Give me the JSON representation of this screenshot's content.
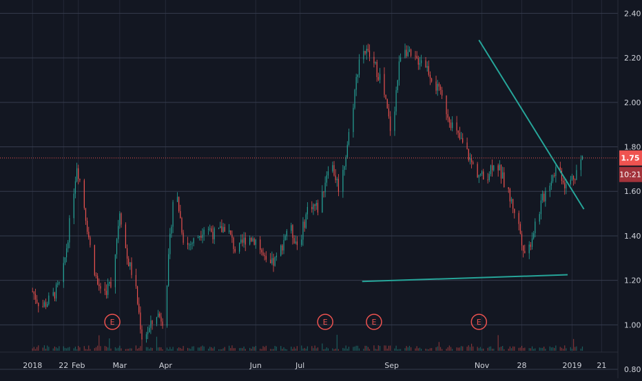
{
  "colors": {
    "background": "#131722",
    "grid": "#363c4e",
    "axis_text": "#d1d4dc",
    "up": "#26a69a",
    "down": "#ef5350",
    "trendline": "#26a69a",
    "price_line": "#ef5350",
    "earnings": "#ef5350"
  },
  "chart_data": {
    "type": "candlestick",
    "title": "",
    "xlabel": "",
    "ylabel": "",
    "ylim": [
      0.76,
      2.46
    ],
    "grid": true,
    "y_ticks": [
      "0.80",
      "1.00",
      "1.20",
      "1.40",
      "1.60",
      "1.80",
      "2.00",
      "2.20",
      "2.40"
    ],
    "y_tick_values": [
      0.8,
      1.0,
      1.2,
      1.4,
      1.6,
      1.8,
      2.0,
      2.2,
      2.4
    ],
    "x_ticks": [
      "2018",
      "22",
      "Feb",
      "Mar",
      "Apr",
      "Jun",
      "Jul",
      "Sep",
      "Nov",
      "28",
      "2019",
      "21"
    ],
    "x_tick_dates": [
      "2018-01-01",
      "2018-01-22",
      "2018-02-01",
      "2018-03-01",
      "2018-04-01",
      "2018-06-01",
      "2018-07-01",
      "2018-09-01",
      "2018-11-01",
      "2018-11-28",
      "2019-01-01",
      "2019-01-21"
    ],
    "price_marker": {
      "label": "1.75",
      "value": 1.75
    },
    "time_marker": {
      "label": "10:21"
    },
    "earnings_markers": [
      {
        "label": "E",
        "date": "2018-02-24"
      },
      {
        "label": "E",
        "date": "2018-07-18"
      },
      {
        "label": "E",
        "date": "2018-08-20"
      },
      {
        "label": "E",
        "date": "2018-10-30"
      }
    ],
    "trendlines": [
      {
        "start": {
          "date": "2018-10-30",
          "value": 2.28
        },
        "end": {
          "date": "2019-01-09",
          "value": 1.52
        }
      },
      {
        "start": {
          "date": "2018-08-12",
          "value": 1.195
        },
        "end": {
          "date": "2018-12-29",
          "value": 1.225
        }
      }
    ],
    "series": [
      {
        "type": "close",
        "x": [
          "2018-01-01",
          "2018-01-07",
          "2018-01-14",
          "2018-01-21",
          "2018-01-26",
          "2018-01-31",
          "2018-02-04",
          "2018-02-09",
          "2018-02-14",
          "2018-02-19",
          "2018-02-24",
          "2018-03-01",
          "2018-03-06",
          "2018-03-11",
          "2018-03-16",
          "2018-03-21",
          "2018-03-26",
          "2018-03-31",
          "2018-04-07",
          "2018-04-14",
          "2018-04-21",
          "2018-04-28",
          "2018-05-05",
          "2018-05-12",
          "2018-05-19",
          "2018-05-26",
          "2018-06-02",
          "2018-06-09",
          "2018-06-16",
          "2018-06-23",
          "2018-06-30",
          "2018-07-07",
          "2018-07-14",
          "2018-07-21",
          "2018-07-28",
          "2018-08-04",
          "2018-08-11",
          "2018-08-18",
          "2018-08-25",
          "2018-09-01",
          "2018-09-04",
          "2018-09-08",
          "2018-09-15",
          "2018-09-22",
          "2018-09-29",
          "2018-10-06",
          "2018-10-13",
          "2018-10-20",
          "2018-10-27",
          "2018-11-03",
          "2018-11-10",
          "2018-11-17",
          "2018-11-24",
          "2018-12-01",
          "2018-12-08",
          "2018-12-15",
          "2018-12-22",
          "2018-12-28",
          "2019-01-03",
          "2019-01-08"
        ],
        "values": [
          1.15,
          1.08,
          1.12,
          1.2,
          1.45,
          1.72,
          1.58,
          1.35,
          1.18,
          1.15,
          1.2,
          1.52,
          1.3,
          1.2,
          0.95,
          0.98,
          1.05,
          1.02,
          1.65,
          1.35,
          1.38,
          1.45,
          1.4,
          1.45,
          1.32,
          1.4,
          1.38,
          1.25,
          1.3,
          1.45,
          1.35,
          1.55,
          1.52,
          1.75,
          1.6,
          1.9,
          2.25,
          2.2,
          2.1,
          1.85,
          2.05,
          2.28,
          2.18,
          2.2,
          2.1,
          2.0,
          1.88,
          1.8,
          1.7,
          1.65,
          1.75,
          1.62,
          1.5,
          1.3,
          1.48,
          1.62,
          1.72,
          1.62,
          1.68,
          1.75
        ]
      }
    ]
  }
}
